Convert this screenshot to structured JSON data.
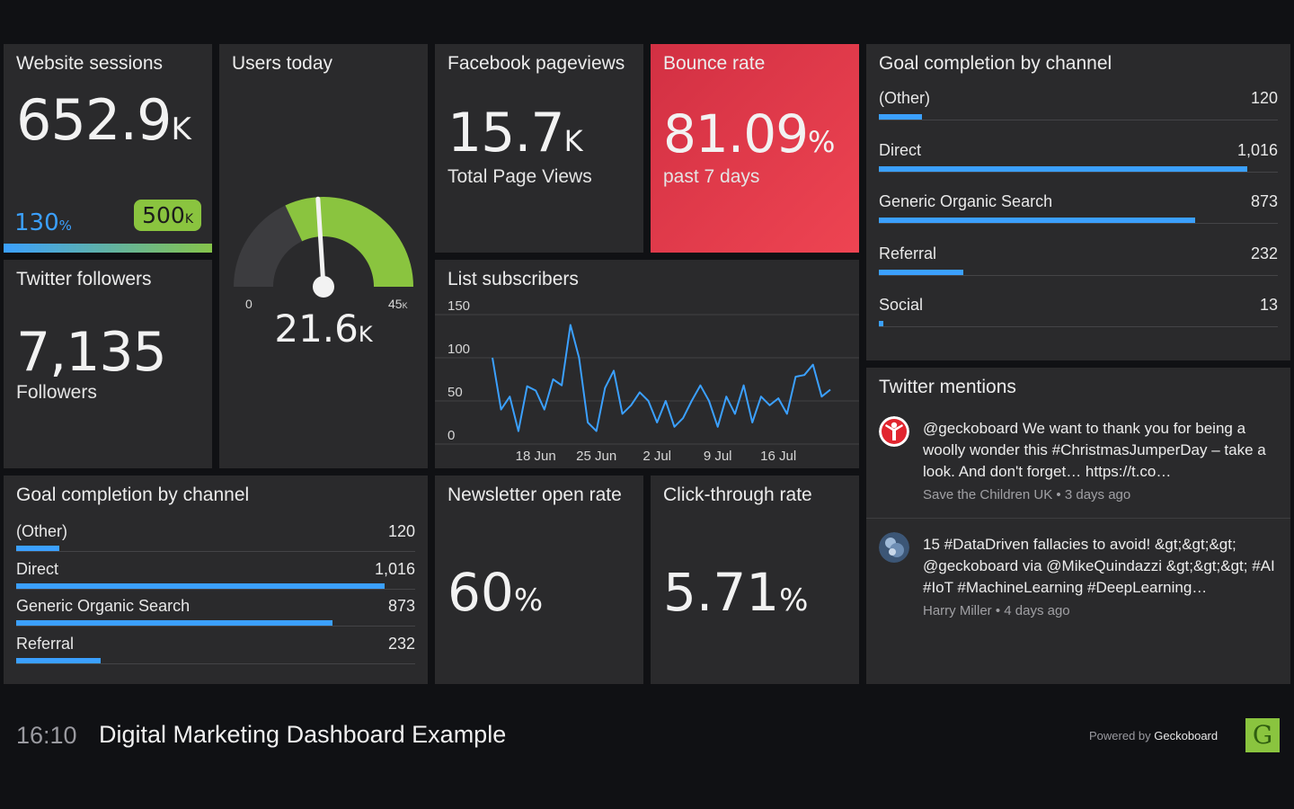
{
  "colors": {
    "accent": "#3ba0ff",
    "goal": "#8ac43f",
    "bounce": "#e03c4b",
    "tile": "#2a2a2c"
  },
  "sessions": {
    "title": "Website sessions",
    "value": "652.9",
    "unit": "K",
    "progress_label": "130",
    "progress_unit": "%",
    "goal_value": "500",
    "goal_unit": "K",
    "progress_fraction": 1.0
  },
  "users": {
    "title": "Users today",
    "value": "21.6",
    "unit": "K",
    "min": "0",
    "max": "45",
    "max_unit": "K",
    "gauge_fraction": 0.48
  },
  "facebook": {
    "title": "Facebook pageviews",
    "value": "15.7",
    "unit": "K",
    "subtitle": "Total Page Views"
  },
  "bounce": {
    "title": "Bounce rate",
    "value": "81.09",
    "unit": "%",
    "subtitle": "past 7 days"
  },
  "goal_top": {
    "title": "Goal completion by channel",
    "max": 1100,
    "rows": [
      {
        "label": "(Other)",
        "value": "120",
        "n": 120
      },
      {
        "label": "Direct",
        "value": "1,016",
        "n": 1016
      },
      {
        "label": "Generic Organic Search",
        "value": "873",
        "n": 873
      },
      {
        "label": "Referral",
        "value": "232",
        "n": 232
      },
      {
        "label": "Social",
        "value": "13",
        "n": 13
      }
    ]
  },
  "twitter": {
    "title": "Twitter followers",
    "value": "7,135",
    "subtitle": "Followers"
  },
  "list": {
    "title": "List subscribers"
  },
  "chart_data": {
    "type": "line",
    "title": "List subscribers",
    "ylim": [
      0,
      150
    ],
    "yticks": [
      "0",
      "50",
      "100",
      "150"
    ],
    "xticks": [
      "18 Jun",
      "25 Jun",
      "2 Jul",
      "9 Jul",
      "16 Jul"
    ],
    "x": [
      "13 Jun",
      "14 Jun",
      "15 Jun",
      "16 Jun",
      "17 Jun",
      "18 Jun",
      "19 Jun",
      "20 Jun",
      "21 Jun",
      "22 Jun",
      "23 Jun",
      "24 Jun",
      "25 Jun",
      "26 Jun",
      "27 Jun",
      "28 Jun",
      "29 Jun",
      "30 Jun",
      "1 Jul",
      "2 Jul",
      "3 Jul",
      "4 Jul",
      "5 Jul",
      "6 Jul",
      "7 Jul",
      "8 Jul",
      "9 Jul",
      "10 Jul",
      "11 Jul",
      "12 Jul",
      "13 Jul",
      "14 Jul",
      "15 Jul",
      "16 Jul",
      "17 Jul",
      "18 Jul",
      "19 Jul",
      "20 Jul",
      "21 Jul",
      "22 Jul"
    ],
    "series": [
      {
        "values": [
          100,
          40,
          55,
          15,
          67,
          62,
          40,
          75,
          68,
          138,
          100,
          25,
          15,
          65,
          85,
          35,
          45,
          60,
          50,
          25,
          50,
          20,
          30,
          50,
          68,
          50,
          20,
          55,
          35,
          68,
          25,
          55,
          45,
          53,
          35,
          78,
          80,
          92,
          55,
          63
        ]
      }
    ]
  },
  "goal_bottom": {
    "title": "Goal completion by channel",
    "max": 1100,
    "rows": [
      {
        "label": "(Other)",
        "value": "120",
        "n": 120
      },
      {
        "label": "Direct",
        "value": "1,016",
        "n": 1016
      },
      {
        "label": "Generic Organic Search",
        "value": "873",
        "n": 873
      },
      {
        "label": "Referral",
        "value": "232",
        "n": 232
      }
    ]
  },
  "newsletter": {
    "title": "Newsletter open rate",
    "value": "60",
    "unit": "%"
  },
  "ctr": {
    "title": "Click-through rate",
    "value": "5.71",
    "unit": "%"
  },
  "mentions": {
    "title": "Twitter mentions",
    "items": [
      {
        "text": "@geckoboard We want to thank you for being a woolly wonder this #ChristmasJumperDay – take a look. And don't forget… https://t.co…",
        "author": "Save the Children UK",
        "time": "3 days ago",
        "avatar": "save-the-children-avatar"
      },
      {
        "text": "15 #DataDriven fallacies to avoid! &gt;&gt;&gt; @geckoboard via @MikeQuindazzi &gt;&gt;&gt; #AI #IoT #MachineLearning #DeepLearning…",
        "author": "Harry Miller",
        "time": "4 days ago",
        "avatar": "harry-miller-avatar"
      }
    ]
  },
  "footer": {
    "time": "16:10",
    "title": "Digital Marketing Dashboard Example",
    "powered_prefix": "Powered by",
    "powered_brand": "Geckoboard",
    "logo_letter": "G"
  }
}
